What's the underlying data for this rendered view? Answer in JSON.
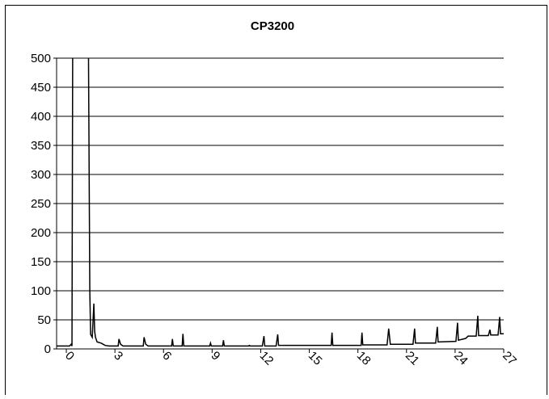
{
  "chart_data": {
    "type": "line",
    "title": "CP3200",
    "color": "#000000",
    "x": [
      -0.6,
      0.2,
      0.3,
      0.35,
      0.4,
      1.35,
      1.45,
      1.5,
      1.6,
      1.7,
      1.75,
      1.8,
      1.9,
      2.15,
      2.4,
      2.65,
      3.2,
      3.25,
      3.35,
      3.5,
      4.75,
      4.8,
      4.9,
      5.05,
      6.5,
      6.55,
      6.6,
      7.15,
      7.2,
      7.25,
      8.85,
      8.9,
      8.95,
      9.65,
      9.7,
      9.75,
      11.25,
      11.3,
      11.35,
      12.1,
      12.2,
      12.25,
      12.95,
      13.05,
      13.1,
      16.35,
      16.4,
      16.45,
      18.2,
      18.25,
      18.3,
      19.8,
      19.9,
      20,
      21.4,
      21.5,
      21.55,
      22.8,
      22.9,
      22.95,
      24.05,
      24.15,
      24.2,
      24.65,
      24.8,
      25.3,
      25.4,
      25.45,
      26.05,
      26.15,
      26.2,
      26.65,
      26.75,
      26.8,
      27
    ],
    "values": [
      5,
      5,
      8,
      5,
      600,
      600,
      100,
      25,
      20,
      78,
      30,
      20,
      12,
      10,
      6,
      5,
      5,
      17,
      8,
      5,
      5,
      20,
      8,
      5,
      5,
      17,
      5,
      5,
      26,
      5,
      5,
      10,
      5,
      5,
      15,
      5,
      5,
      6,
      5,
      5,
      22,
      5,
      5,
      25,
      6,
      6,
      28,
      6,
      6,
      28,
      7,
      7,
      35,
      8,
      8,
      35,
      10,
      10,
      38,
      12,
      13,
      45,
      15,
      18,
      22,
      22,
      57,
      23,
      23,
      33,
      24,
      24,
      55,
      26,
      26
    ],
    "xlim": [
      -0.6,
      27
    ],
    "xticks": [
      0,
      3,
      6,
      9,
      12,
      15,
      18,
      21,
      24,
      27
    ],
    "ylim": [
      0,
      500
    ],
    "yticks": [
      0,
      50,
      100,
      150,
      200,
      250,
      300,
      350,
      400,
      450,
      500
    ],
    "grid": true
  }
}
